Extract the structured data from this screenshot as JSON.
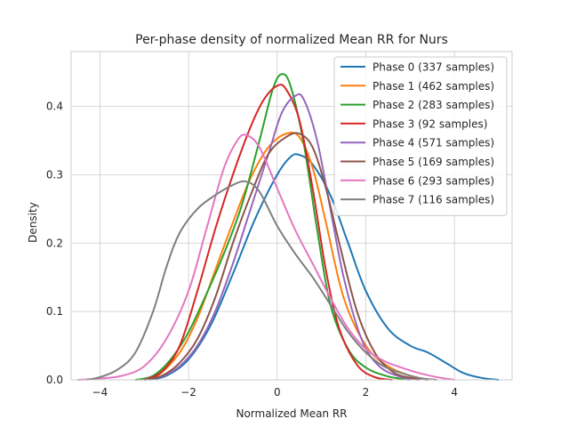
{
  "chart_data": {
    "type": "line",
    "title": "Per-phase density of normalized Mean RR for Nurs",
    "xlabel": "Normalized Mean RR",
    "ylabel": "Density",
    "xlim": [
      -4.65,
      5.3
    ],
    "ylim": [
      0,
      0.48
    ],
    "xticks": [
      -4,
      -2,
      0,
      2,
      4
    ],
    "xtick_labels": [
      "−4",
      "−2",
      "0",
      "2",
      "4"
    ],
    "yticks": [
      0.0,
      0.1,
      0.2,
      0.3,
      0.4
    ],
    "ytick_labels": [
      "0.0",
      "0.1",
      "0.2",
      "0.3",
      "0.4"
    ],
    "grid": true,
    "legend_position": "top-right",
    "series": [
      {
        "name": "Phase 0 (337 samples)",
        "color": "#1f77b4",
        "x": [
          -2.9,
          -2.5,
          -2.0,
          -1.5,
          -1.0,
          -0.5,
          0.0,
          0.3,
          0.5,
          0.8,
          1.2,
          1.6,
          2.0,
          2.5,
          3.0,
          3.4,
          3.8,
          4.2,
          4.6,
          5.0
        ],
        "y": [
          0.0,
          0.006,
          0.03,
          0.08,
          0.155,
          0.235,
          0.3,
          0.326,
          0.329,
          0.315,
          0.27,
          0.2,
          0.13,
          0.075,
          0.05,
          0.04,
          0.025,
          0.01,
          0.003,
          0.0
        ]
      },
      {
        "name": "Phase 1 (462 samples)",
        "color": "#ff7f0e",
        "x": [
          -3.1,
          -2.7,
          -2.2,
          -1.8,
          -1.4,
          -1.0,
          -0.6,
          -0.2,
          0.2,
          0.5,
          0.8,
          1.1,
          1.5,
          2.0,
          2.5,
          3.0,
          3.4
        ],
        "y": [
          0.0,
          0.006,
          0.04,
          0.09,
          0.16,
          0.23,
          0.295,
          0.34,
          0.36,
          0.355,
          0.31,
          0.23,
          0.12,
          0.05,
          0.02,
          0.006,
          0.0
        ]
      },
      {
        "name": "Phase 2 (283 samples)",
        "color": "#2ca02c",
        "x": [
          -3.2,
          -2.8,
          -2.4,
          -2.0,
          -1.6,
          -1.2,
          -0.8,
          -0.4,
          -0.1,
          0.1,
          0.3,
          0.6,
          0.9,
          1.2,
          1.6,
          2.0,
          2.5,
          3.0
        ],
        "y": [
          0.0,
          0.006,
          0.03,
          0.07,
          0.125,
          0.185,
          0.255,
          0.35,
          0.425,
          0.447,
          0.43,
          0.345,
          0.22,
          0.11,
          0.045,
          0.018,
          0.005,
          0.0
        ]
      },
      {
        "name": "Phase 3 (92 samples)",
        "color": "#d62728",
        "x": [
          -3.0,
          -2.6,
          -2.2,
          -1.8,
          -1.4,
          -1.0,
          -0.6,
          -0.3,
          0.0,
          0.2,
          0.5,
          0.8,
          1.1,
          1.4,
          1.8,
          2.2,
          2.6
        ],
        "y": [
          0.0,
          0.012,
          0.05,
          0.13,
          0.22,
          0.3,
          0.37,
          0.41,
          0.43,
          0.425,
          0.38,
          0.28,
          0.16,
          0.075,
          0.022,
          0.004,
          0.0
        ]
      },
      {
        "name": "Phase 4 (571 samples)",
        "color": "#9467bd",
        "x": [
          -3.0,
          -2.6,
          -2.2,
          -1.8,
          -1.4,
          -1.0,
          -0.6,
          -0.2,
          0.1,
          0.4,
          0.6,
          0.9,
          1.2,
          1.5,
          1.9,
          2.3,
          2.8,
          3.2
        ],
        "y": [
          0.0,
          0.005,
          0.02,
          0.05,
          0.1,
          0.17,
          0.25,
          0.33,
          0.39,
          0.415,
          0.41,
          0.35,
          0.25,
          0.15,
          0.06,
          0.02,
          0.004,
          0.0
        ]
      },
      {
        "name": "Phase 5 (169 samples)",
        "color": "#8c564b",
        "x": [
          -3.0,
          -2.6,
          -2.2,
          -1.8,
          -1.4,
          -1.0,
          -0.6,
          -0.2,
          0.2,
          0.5,
          0.8,
          1.1,
          1.4,
          1.8,
          2.2,
          2.6,
          3.0,
          3.4
        ],
        "y": [
          0.0,
          0.006,
          0.025,
          0.06,
          0.12,
          0.2,
          0.27,
          0.33,
          0.355,
          0.36,
          0.34,
          0.28,
          0.2,
          0.1,
          0.04,
          0.012,
          0.003,
          0.0
        ]
      },
      {
        "name": "Phase 6 (293 samples)",
        "color": "#e377c2",
        "x": [
          -4.5,
          -4.0,
          -3.5,
          -3.0,
          -2.5,
          -2.0,
          -1.6,
          -1.2,
          -0.9,
          -0.7,
          -0.4,
          0.0,
          0.4,
          0.8,
          1.2,
          1.6,
          2.0,
          2.4,
          2.8,
          3.2,
          3.6,
          4.0
        ],
        "y": [
          0.0,
          0.002,
          0.006,
          0.02,
          0.06,
          0.13,
          0.22,
          0.31,
          0.35,
          0.358,
          0.34,
          0.28,
          0.22,
          0.17,
          0.12,
          0.075,
          0.045,
          0.028,
          0.018,
          0.01,
          0.004,
          0.0
        ]
      },
      {
        "name": "Phase 7 (116 samples)",
        "color": "#7f7f7f",
        "x": [
          -4.3,
          -4.0,
          -3.6,
          -3.2,
          -2.8,
          -2.5,
          -2.2,
          -1.8,
          -1.4,
          -1.0,
          -0.7,
          -0.4,
          0.0,
          0.4,
          0.8,
          1.2,
          1.6,
          2.0,
          2.4,
          2.8,
          3.2,
          3.6
        ],
        "y": [
          0.0,
          0.004,
          0.015,
          0.04,
          0.1,
          0.165,
          0.215,
          0.25,
          0.27,
          0.285,
          0.29,
          0.275,
          0.225,
          0.185,
          0.15,
          0.11,
          0.07,
          0.04,
          0.02,
          0.01,
          0.003,
          0.0
        ]
      }
    ]
  }
}
